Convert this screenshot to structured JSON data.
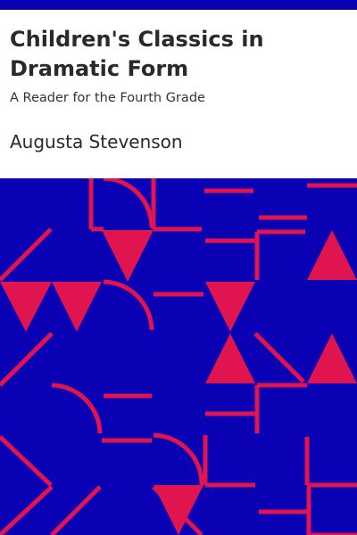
{
  "book": {
    "title": "Children's Classics in Dramatic Form",
    "subtitle": "A Reader for the Fourth Grade",
    "author": "Augusta Stevenson"
  },
  "colors": {
    "background": "#ffffff",
    "pattern_background": "#0a00b4",
    "pattern_accent": "#e0144e",
    "text": "#2a2a2a"
  }
}
